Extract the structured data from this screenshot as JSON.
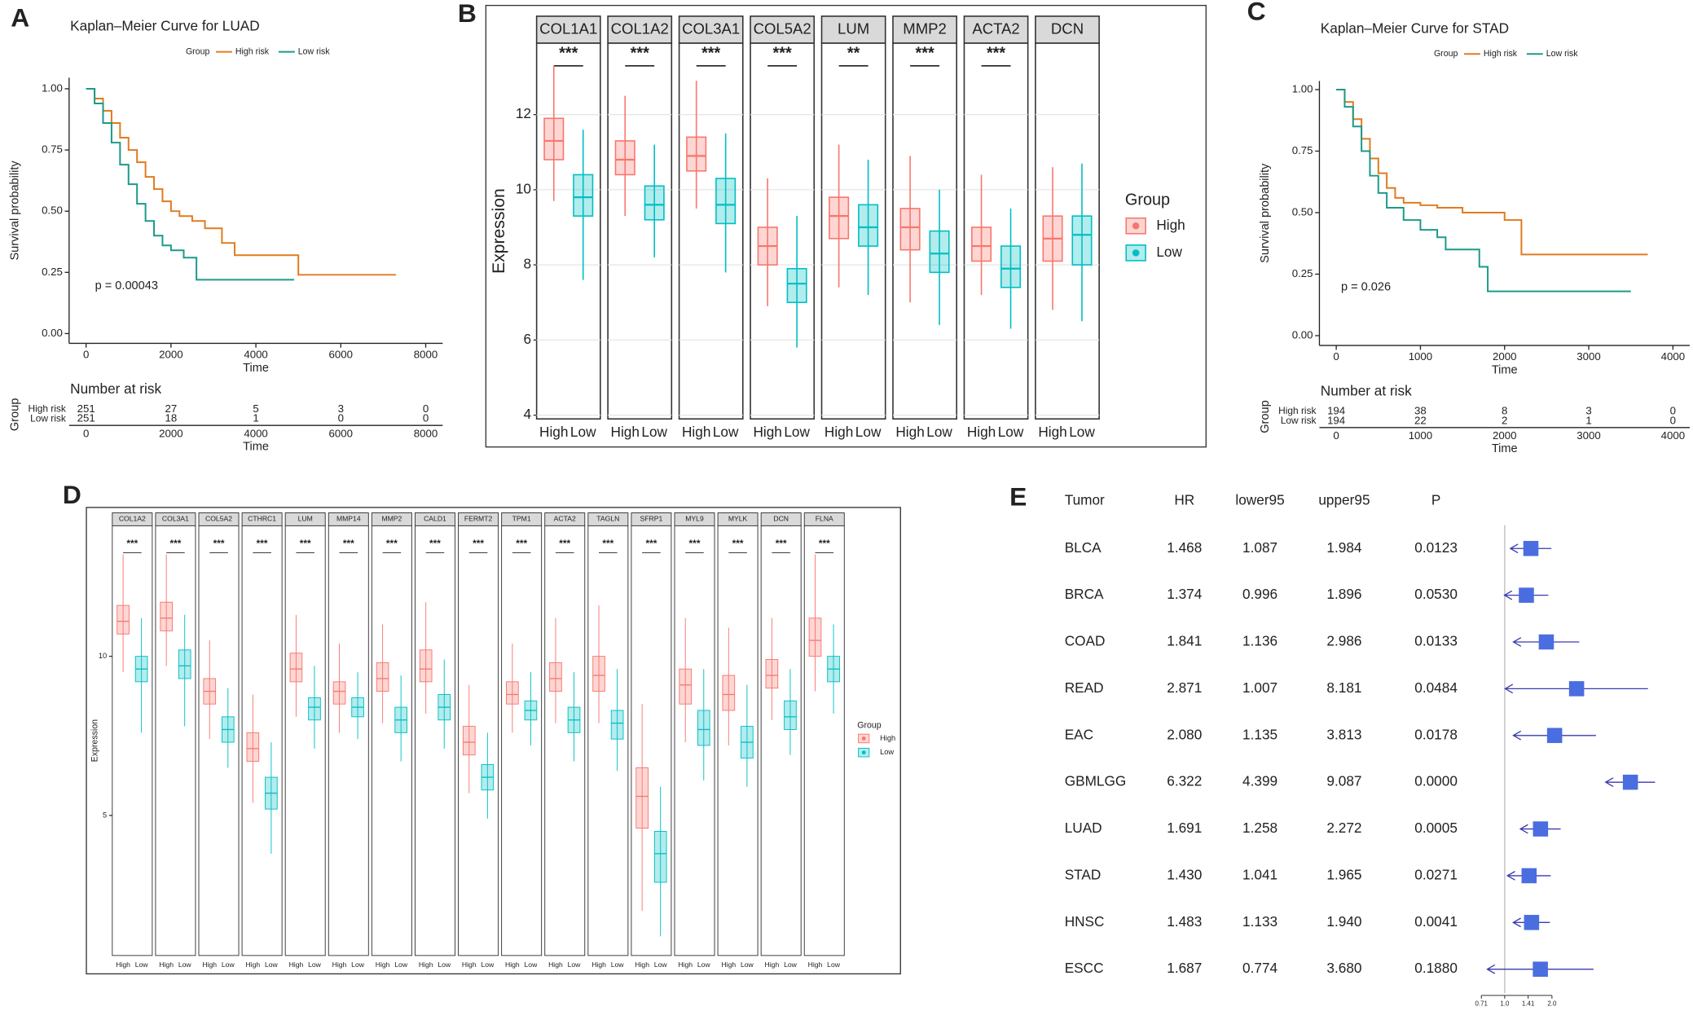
{
  "chart_data": [
    {
      "type": "survival",
      "panel": "A",
      "title": "Kaplan–Meier Curve for LUAD",
      "legend_title": "Group",
      "xlabel": "Time",
      "ylabel": "Survival probability",
      "annotation": "p = 0.00043",
      "xlim": [
        -400,
        8400
      ],
      "xticks": [
        0,
        2000,
        4000,
        6000,
        8000
      ],
      "ylim": [
        -0.04,
        1.045
      ],
      "yticks": [
        {
          "value": 0,
          "label": "0.00"
        },
        0.25,
        {
          "value": 0.5,
          "label": "0.50"
        },
        0.75,
        {
          "value": 1,
          "label": "1.00"
        }
      ],
      "series": [
        {
          "name": "High risk",
          "color": "#E07B1F",
          "x": [
            0,
            200,
            400,
            600,
            800,
            1000,
            1200,
            1400,
            1600,
            1800,
            2000,
            2200,
            2500,
            2800,
            3200,
            3500,
            4000,
            5000,
            6000,
            7300
          ],
          "values": [
            1,
            0.96,
            0.91,
            0.86,
            0.8,
            0.75,
            0.7,
            0.64,
            0.59,
            0.54,
            0.5,
            0.48,
            0.46,
            0.43,
            0.37,
            0.32,
            0.32,
            0.24,
            0.24,
            0.24
          ]
        },
        {
          "name": "Low risk",
          "color": "#1B9A8A",
          "x": [
            0,
            200,
            400,
            600,
            800,
            1000,
            1200,
            1400,
            1600,
            1800,
            2000,
            2300,
            2600,
            3500,
            4900
          ],
          "values": [
            1,
            0.94,
            0.86,
            0.78,
            0.69,
            0.61,
            0.53,
            0.46,
            0.4,
            0.36,
            0.34,
            0.31,
            0.22,
            0.22,
            0.22
          ]
        }
      ],
      "risk_table": {
        "title": "Number at risk",
        "ylabel": "Group",
        "xlabel": "Time",
        "values": [
          [
            251,
            27,
            5,
            3,
            0
          ],
          [
            251,
            18,
            1,
            0,
            0
          ]
        ]
      }
    },
    {
      "type": "box",
      "panel": "B",
      "ylabel": "Expression",
      "legend_title": "Group",
      "grid": true,
      "facets": [
        "COL1A1",
        "COL1A2",
        "COL3A1",
        "COL5A2",
        "LUM",
        "MMP2",
        "ACTA2",
        "DCN"
      ],
      "significance": [
        "***",
        "***",
        "***",
        "***",
        "**",
        "***",
        "***",
        null
      ],
      "categories": [
        "High",
        "Low"
      ],
      "ylim": [
        3.9,
        13.9
      ],
      "yticks": [
        4,
        6,
        8,
        10,
        12
      ],
      "series": [
        {
          "name": "High",
          "color": "#F8766D",
          "values": [
            [
              9.7,
              10.8,
              11.3,
              11.9,
              13.3
            ],
            [
              9.3,
              10.4,
              10.8,
              11.3,
              12.5
            ],
            [
              9.5,
              10.5,
              10.9,
              11.4,
              12.9
            ],
            [
              6.9,
              8.0,
              8.5,
              9.0,
              10.3
            ],
            [
              7.4,
              8.7,
              9.3,
              9.8,
              11.2
            ],
            [
              7.0,
              8.4,
              9.0,
              9.5,
              10.9
            ],
            [
              7.2,
              8.1,
              8.5,
              9.0,
              10.4
            ],
            [
              6.8,
              8.1,
              8.7,
              9.3,
              10.6
            ]
          ]
        },
        {
          "name": "Low",
          "color": "#00BFC4",
          "values": [
            [
              7.6,
              9.3,
              9.8,
              10.4,
              11.6
            ],
            [
              8.2,
              9.2,
              9.6,
              10.1,
              11.2
            ],
            [
              7.8,
              9.1,
              9.6,
              10.3,
              11.5
            ],
            [
              5.8,
              7.0,
              7.5,
              7.9,
              9.3
            ],
            [
              7.2,
              8.5,
              9.0,
              9.6,
              10.8
            ],
            [
              6.4,
              7.8,
              8.3,
              8.9,
              10.0
            ],
            [
              6.3,
              7.4,
              7.9,
              8.5,
              9.5
            ],
            [
              6.5,
              8.0,
              8.8,
              9.3,
              10.7
            ]
          ]
        }
      ]
    },
    {
      "type": "survival",
      "panel": "C",
      "title": "Kaplan–Meier Curve for STAD",
      "legend_title": "Group",
      "xlabel": "Time",
      "ylabel": "Survival probability",
      "annotation": "p = 0.026",
      "xlim": [
        -200,
        4200
      ],
      "xticks": [
        0,
        1000,
        2000,
        3000,
        4000
      ],
      "ylim": [
        -0.04,
        1.035
      ],
      "yticks": [
        {
          "value": 0,
          "label": "0.00"
        },
        0.25,
        {
          "value": 0.5,
          "label": "0.50"
        },
        0.75,
        {
          "value": 1,
          "label": "1.00"
        }
      ],
      "series": [
        {
          "name": "High risk",
          "color": "#E07B1F",
          "x": [
            0,
            100,
            200,
            300,
            400,
            500,
            600,
            700,
            800,
            1000,
            1200,
            1500,
            2000,
            2200,
            2500,
            3000,
            3700
          ],
          "values": [
            1,
            0.95,
            0.88,
            0.8,
            0.72,
            0.66,
            0.6,
            0.56,
            0.54,
            0.53,
            0.52,
            0.5,
            0.47,
            0.33,
            0.33,
            0.33,
            0.33
          ]
        },
        {
          "name": "Low risk",
          "color": "#1B9A8A",
          "x": [
            0,
            100,
            200,
            300,
            400,
            500,
            600,
            800,
            1000,
            1200,
            1300,
            1700,
            1800,
            2500,
            3500
          ],
          "values": [
            1,
            0.93,
            0.85,
            0.75,
            0.65,
            0.58,
            0.52,
            0.47,
            0.43,
            0.4,
            0.35,
            0.28,
            0.18,
            0.18,
            0.18
          ]
        }
      ],
      "risk_table": {
        "title": "Number at risk",
        "ylabel": "Group",
        "xlabel": "Time",
        "values": [
          [
            194,
            38,
            8,
            3,
            0
          ],
          [
            194,
            22,
            2,
            1,
            0
          ]
        ]
      }
    },
    {
      "type": "box",
      "panel": "D",
      "ylabel": "Expression",
      "legend_title": "Group",
      "grid": false,
      "facets": [
        "COL1A2",
        "COL3A1",
        "COL5A2",
        "CTHRC1",
        "LUM",
        "MMP14",
        "MMP2",
        "CALD1",
        "FERMT2",
        "TPM1",
        "ACTA2",
        "TAGLN",
        "SFRP1",
        "MYL9",
        "MYLK",
        "DCN",
        "FLNA"
      ],
      "significance": [
        "***",
        "***",
        "***",
        "***",
        "***",
        "***",
        "***",
        "***",
        "***",
        "***",
        "***",
        "***",
        "***",
        "***",
        "***",
        "***",
        "***"
      ],
      "categories": [
        "High",
        "Low"
      ],
      "ylim": [
        0.6,
        14.1
      ],
      "yticks": [
        5,
        10
      ],
      "series": [
        {
          "name": "High",
          "color": "#F8766D",
          "values": [
            [
              9.5,
              10.7,
              11.1,
              11.6,
              13.2
            ],
            [
              9.7,
              10.8,
              11.2,
              11.7,
              13.2
            ],
            [
              7.4,
              8.5,
              8.9,
              9.3,
              10.5
            ],
            [
              5.4,
              6.7,
              7.1,
              7.6,
              8.8
            ],
            [
              8.1,
              9.2,
              9.6,
              10.1,
              11.3
            ],
            [
              7.6,
              8.5,
              8.9,
              9.2,
              10.4
            ],
            [
              7.9,
              8.9,
              9.3,
              9.8,
              11.0
            ],
            [
              8.2,
              9.2,
              9.6,
              10.2,
              11.7
            ],
            [
              5.7,
              6.9,
              7.3,
              7.8,
              9.1
            ],
            [
              7.6,
              8.5,
              8.8,
              9.2,
              10.4
            ],
            [
              7.9,
              8.9,
              9.3,
              9.8,
              11.2
            ],
            [
              7.9,
              8.9,
              9.4,
              10.0,
              11.6
            ],
            [
              2.0,
              4.6,
              5.6,
              6.5,
              8.5
            ],
            [
              7.3,
              8.5,
              9.1,
              9.6,
              11.2
            ],
            [
              7.2,
              8.3,
              8.8,
              9.4,
              10.9
            ],
            [
              8.0,
              9.0,
              9.4,
              9.9,
              11.2
            ],
            [
              8.9,
              10.0,
              10.5,
              11.2,
              13.2
            ]
          ]
        },
        {
          "name": "Low",
          "color": "#00BFC4",
          "values": [
            [
              7.6,
              9.2,
              9.6,
              10.0,
              11.2
            ],
            [
              7.8,
              9.3,
              9.7,
              10.2,
              11.3
            ],
            [
              6.5,
              7.3,
              7.7,
              8.1,
              9.0
            ],
            [
              3.8,
              5.2,
              5.7,
              6.2,
              7.3
            ],
            [
              7.1,
              8.0,
              8.4,
              8.7,
              9.7
            ],
            [
              7.4,
              8.1,
              8.4,
              8.7,
              9.5
            ],
            [
              6.7,
              7.6,
              8.0,
              8.4,
              9.4
            ],
            [
              7.1,
              8.0,
              8.4,
              8.8,
              9.9
            ],
            [
              4.9,
              5.8,
              6.2,
              6.6,
              7.6
            ],
            [
              7.2,
              8.0,
              8.3,
              8.6,
              9.5
            ],
            [
              6.7,
              7.6,
              8.0,
              8.4,
              9.5
            ],
            [
              6.4,
              7.4,
              7.9,
              8.3,
              9.6
            ],
            [
              1.2,
              2.9,
              3.8,
              4.5,
              5.9
            ],
            [
              6.1,
              7.2,
              7.7,
              8.3,
              9.6
            ],
            [
              5.9,
              6.8,
              7.3,
              7.8,
              9.1
            ],
            [
              6.9,
              7.7,
              8.1,
              8.6,
              9.6
            ],
            [
              8.2,
              9.2,
              9.6,
              10.0,
              11.0
            ]
          ]
        }
      ]
    },
    {
      "type": "forest",
      "panel": "E",
      "color": "#4A6DE0",
      "line_color": "#3A3AB0",
      "columns": [
        "Tumor",
        "HR",
        "lower95",
        "upper95",
        "P"
      ],
      "categories": [
        "BLCA",
        "BRCA",
        "COAD",
        "READ",
        "EAC",
        "GBMLGG",
        "LUAD",
        "STAD",
        "HNSC",
        "ESCC"
      ],
      "values": [
        1.468,
        1.374,
        1.841,
        2.871,
        2.08,
        6.322,
        1.691,
        1.43,
        1.483,
        1.687
      ],
      "value_labels": [
        "1.468",
        "1.374",
        "1.841",
        "2.871",
        "2.080",
        "6.322",
        "1.691",
        "1.430",
        "1.483",
        "1.687"
      ],
      "lower": [
        1.087,
        0.996,
        1.136,
        1.007,
        1.135,
        4.399,
        1.258,
        1.041,
        1.133,
        0.774
      ],
      "lower_labels": [
        "1.087",
        "0.996",
        "1.136",
        "1.007",
        "1.135",
        "4.399",
        "1.258",
        "1.041",
        "1.133",
        "0.774"
      ],
      "upper": [
        1.984,
        1.896,
        2.986,
        8.181,
        3.813,
        9.087,
        2.272,
        1.965,
        1.94,
        3.68
      ],
      "upper_labels": [
        "1.984",
        "1.896",
        "2.986",
        "8.181",
        "3.813",
        "9.087",
        "2.272",
        "1.965",
        "1.940",
        "3.680"
      ],
      "p_values": [
        "0.0123",
        "0.0530",
        "0.0133",
        "0.0484",
        "0.0178",
        "0.0000",
        "0.0005",
        "0.0271",
        "0.0041",
        "0.1880"
      ],
      "log_scale": true,
      "reference_line": 1,
      "xlim": [
        0.71,
        9.1
      ],
      "xticks": [
        0.71,
        {
          "value": 1,
          "label": "1.0"
        },
        1.41,
        {
          "value": 2,
          "label": "2.0"
        }
      ]
    }
  ]
}
